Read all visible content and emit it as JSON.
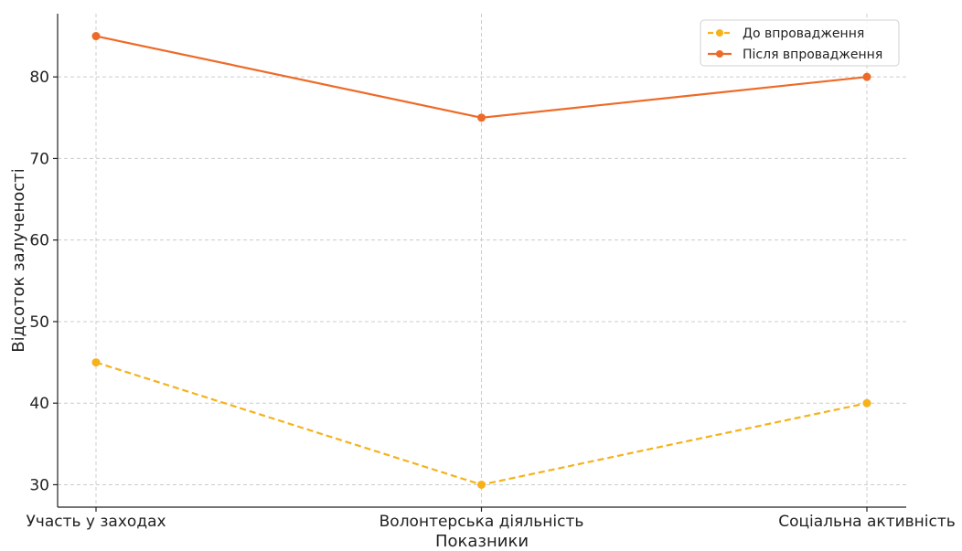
{
  "chart_data": {
    "type": "line",
    "title": "",
    "xlabel": "Показники",
    "ylabel": "Відсоток залученості",
    "categories": [
      "Участь у заходах",
      "Волонтерська діяльність",
      "Соціальна активність"
    ],
    "series": [
      {
        "name": "До впровадження",
        "values": [
          45,
          30,
          40
        ],
        "color": "#f5b21b",
        "line_style": "dashed",
        "marker": "circle"
      },
      {
        "name": "Після впровадження",
        "values": [
          85,
          75,
          80
        ],
        "color": "#ee6a27",
        "line_style": "solid",
        "marker": "circle"
      }
    ],
    "ylim": [
      27.25,
      87.75
    ],
    "yticks": [
      30,
      40,
      50,
      60,
      70,
      80
    ],
    "grid": true,
    "legend_position": "top-right"
  }
}
